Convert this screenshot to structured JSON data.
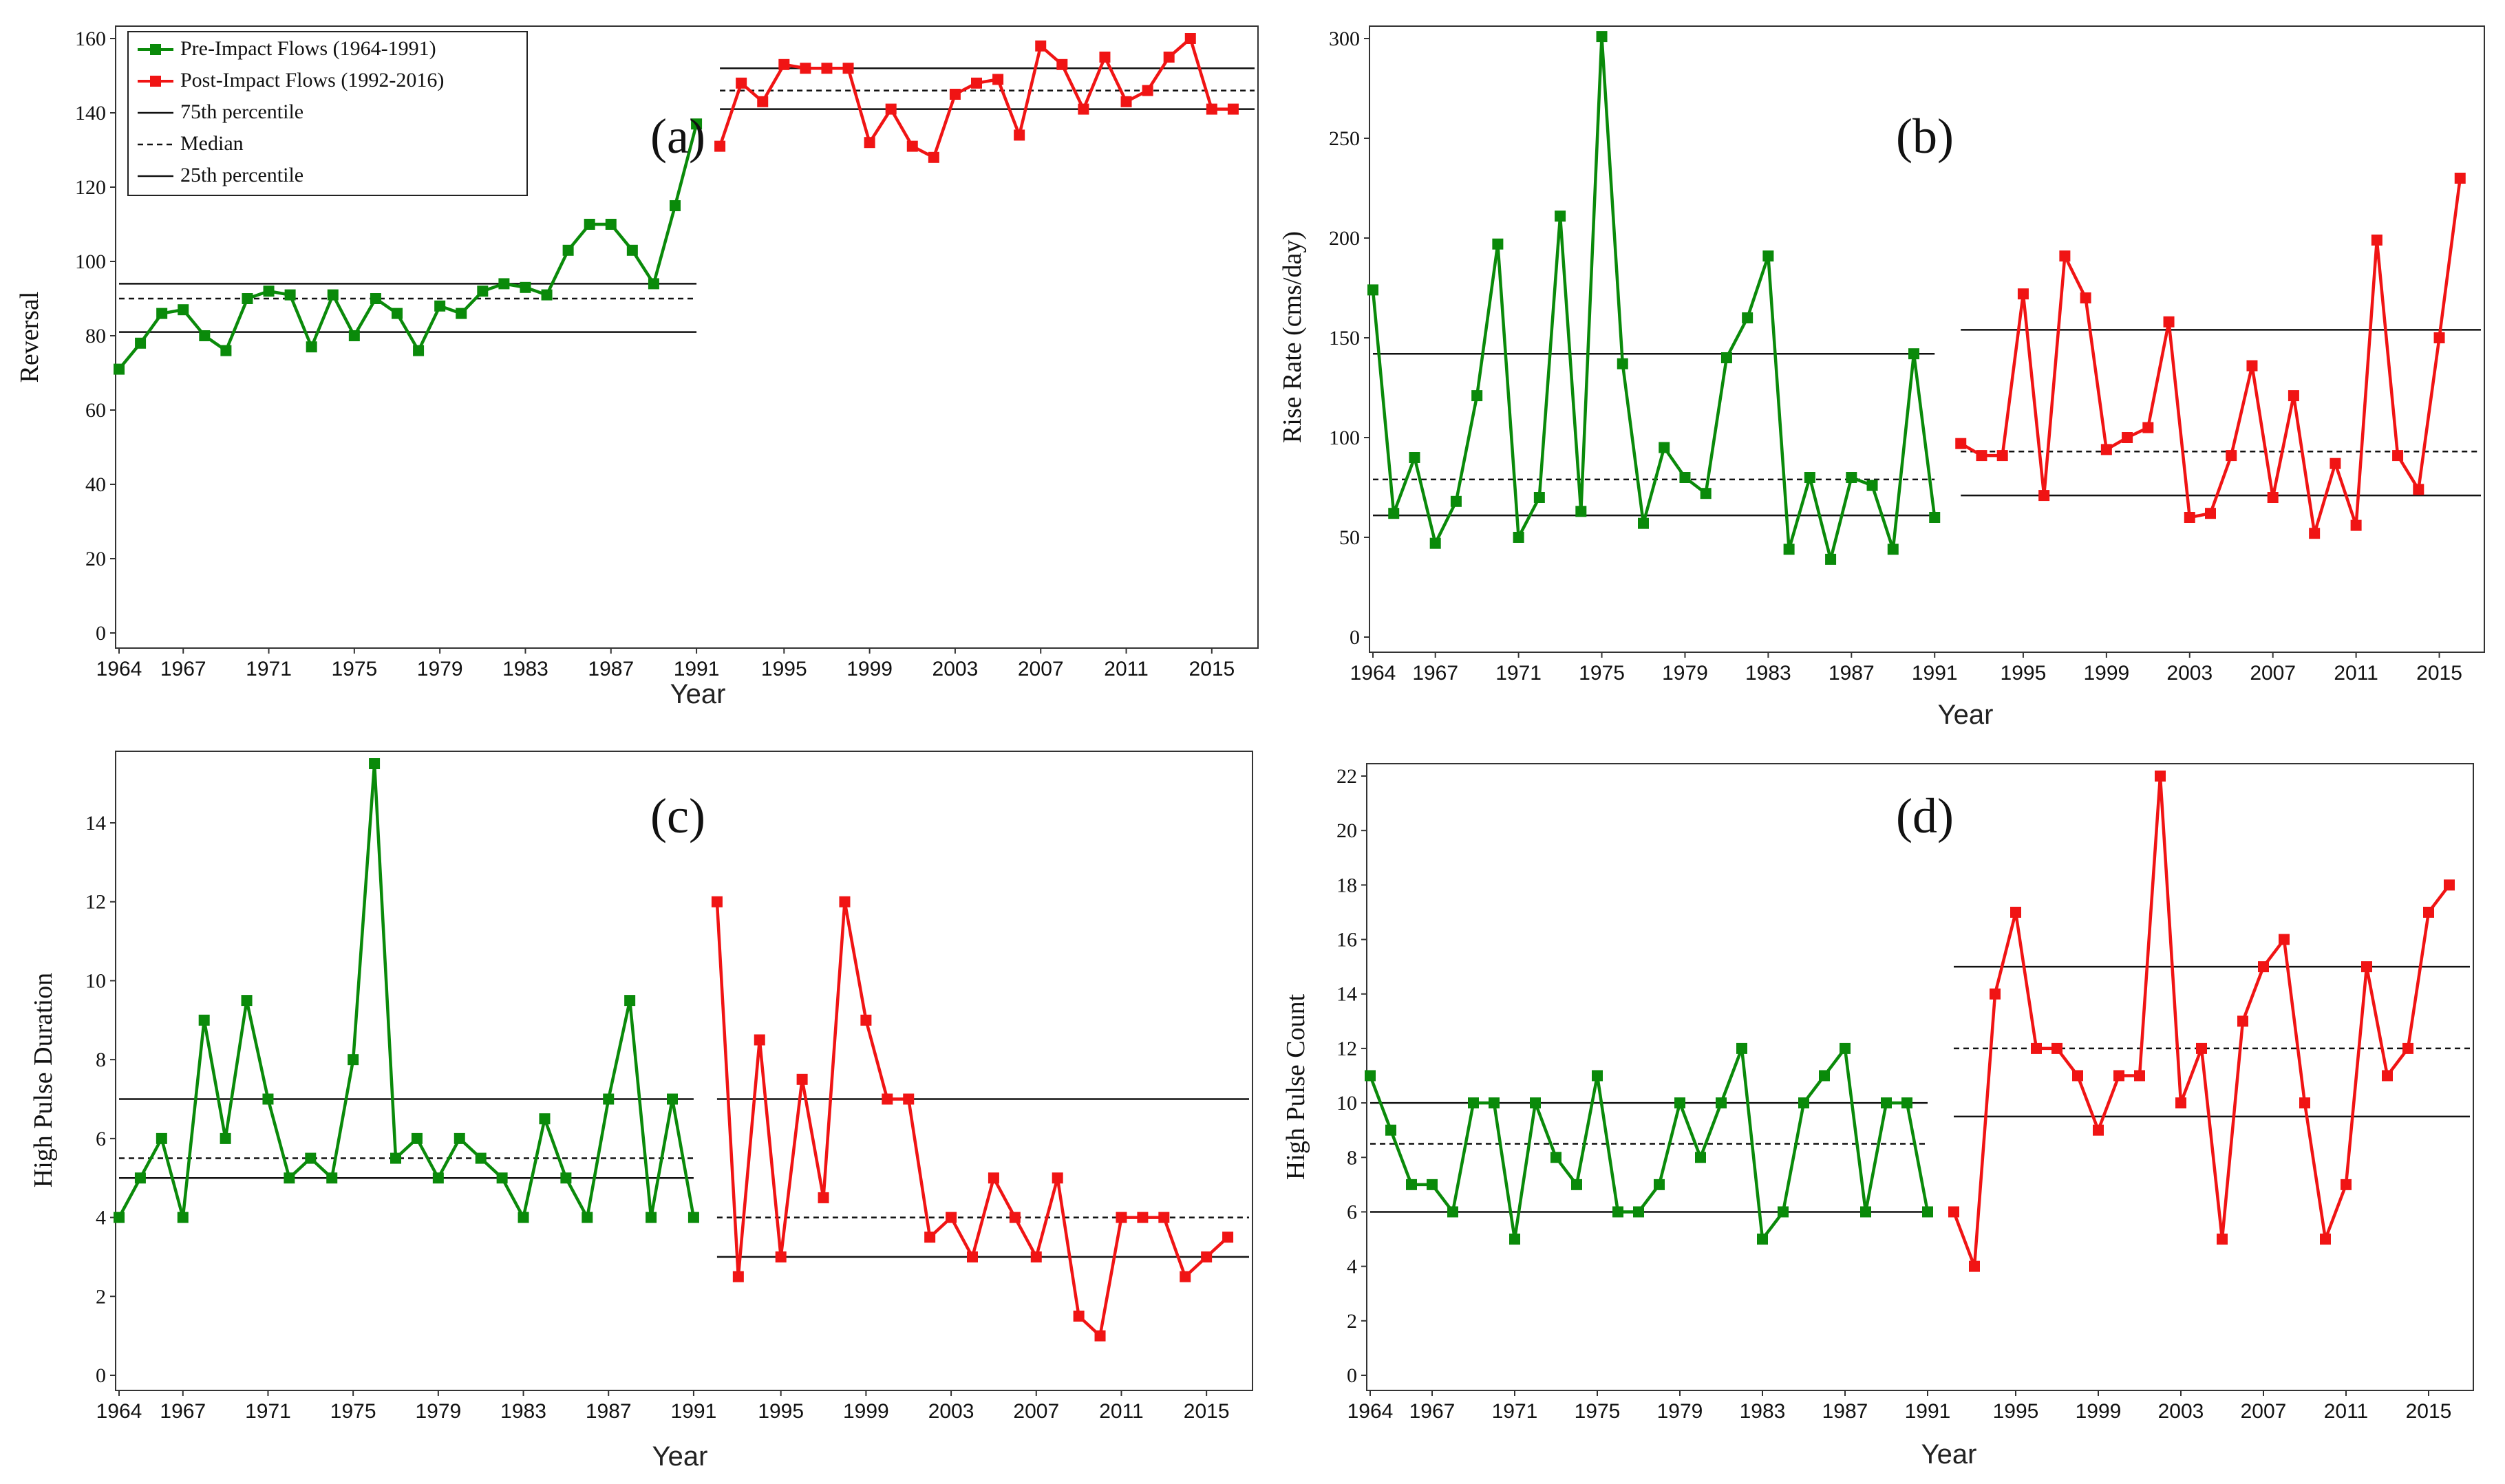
{
  "colors": {
    "pre": "#0a8a0a",
    "post": "#f01414",
    "ref": "#111111"
  },
  "legend": {
    "items": [
      {
        "label": "Pre-Impact Flows (1964-1991)",
        "kind": "pre"
      },
      {
        "label": "Post-Impact Flows (1992-2016)",
        "kind": "post"
      },
      {
        "label": "75th percentile",
        "kind": "solid"
      },
      {
        "label": "Median",
        "kind": "dashed"
      },
      {
        "label": "25th percentile",
        "kind": "solid"
      }
    ]
  },
  "chart_data": [
    {
      "type": "line",
      "panel": "(a)",
      "ylabel": "Reversal",
      "xlabel": "Year",
      "ylim": [
        0,
        160
      ],
      "yticks": [
        0,
        20,
        40,
        60,
        80,
        100,
        120,
        140,
        160
      ],
      "xlim": [
        1964,
        2016
      ],
      "xticks": [
        "1964",
        "1967",
        "1971",
        "1975",
        "1979",
        "1983",
        "1987",
        "1991",
        "1995",
        "1999",
        "2003",
        "2007",
        "2011",
        "2015"
      ],
      "series": [
        {
          "name": "Pre-Impact Flows (1964-1991)",
          "x_start": 1964,
          "values": [
            71,
            78,
            86,
            87,
            80,
            76,
            90,
            92,
            91,
            77,
            91,
            80,
            90,
            86,
            76,
            88,
            86,
            92,
            94,
            93,
            91,
            103,
            110,
            110,
            103,
            94,
            115,
            137
          ]
        },
        {
          "name": "Post-Impact Flows (1992-2016)",
          "x_start": 1992,
          "values": [
            131,
            148,
            143,
            153,
            152,
            152,
            152,
            132,
            141,
            131,
            128,
            145,
            148,
            149,
            134,
            158,
            153,
            141,
            155,
            143,
            146,
            155,
            160,
            141,
            141
          ]
        }
      ],
      "reference_lines": {
        "pre": {
          "p75": 94,
          "median": 90,
          "p25": 81
        },
        "post": {
          "p75": 152,
          "median": 146,
          "p25": 141
        }
      }
    },
    {
      "type": "line",
      "panel": "(b)",
      "ylabel": "Rise Rate (cms/day)",
      "xlabel": "Year",
      "ylim": [
        0,
        300
      ],
      "yticks": [
        0,
        50,
        100,
        150,
        200,
        250,
        300
      ],
      "xlim": [
        1964,
        2016
      ],
      "xticks": [
        "1964",
        "1967",
        "1971",
        "1975",
        "1979",
        "1983",
        "1987",
        "1991",
        "1995",
        "1999",
        "2003",
        "2007",
        "2011",
        "2015"
      ],
      "series": [
        {
          "name": "Pre-Impact Flows (1964-1991)",
          "x_start": 1964,
          "values": [
            174,
            62,
            90,
            47,
            68,
            121,
            197,
            50,
            70,
            211,
            63,
            301,
            137,
            57,
            95,
            80,
            72,
            140,
            160,
            191,
            44,
            80,
            39,
            80,
            76,
            44,
            142,
            60
          ]
        },
        {
          "name": "Post-Impact Flows (1992-2016)",
          "x_start": 1992,
          "values": [
            97,
            91,
            91,
            172,
            71,
            191,
            170,
            94,
            100,
            105,
            158,
            60,
            62,
            91,
            136,
            70,
            121,
            52,
            87,
            56,
            199,
            91,
            74,
            150,
            230
          ]
        }
      ],
      "reference_lines": {
        "pre": {
          "p75": 142,
          "median": 79,
          "p25": 61
        },
        "post": {
          "p75": 154,
          "median": 93,
          "p25": 71
        }
      }
    },
    {
      "type": "line",
      "panel": "(c)",
      "ylabel": "High Pulse Duration",
      "xlabel": "Year",
      "ylim": [
        0,
        15.5
      ],
      "yticks": [
        0,
        2,
        4,
        6,
        8,
        10,
        12,
        14
      ],
      "xlim": [
        1964,
        2016
      ],
      "xticks": [
        "1964",
        "1967",
        "1971",
        "1975",
        "1979",
        "1983",
        "1987",
        "1991",
        "1995",
        "1999",
        "2003",
        "2007",
        "2011",
        "2015"
      ],
      "series": [
        {
          "name": "Pre-Impact Flows (1964-1991)",
          "x_start": 1964,
          "values": [
            4,
            5,
            6,
            4,
            9,
            6,
            9.5,
            7,
            5,
            5.5,
            5,
            8,
            15.5,
            5.5,
            6,
            5,
            6,
            5.5,
            5,
            4,
            6.5,
            5,
            4,
            7,
            9.5,
            4,
            7,
            4
          ]
        },
        {
          "name": "Post-Impact Flows (1992-2016)",
          "x_start": 1992,
          "values": [
            12,
            2.5,
            8.5,
            3,
            7.5,
            4.5,
            12,
            9,
            7,
            7,
            3.5,
            4,
            3,
            5,
            4,
            3,
            5,
            1.5,
            1,
            4,
            4,
            4,
            2.5,
            3,
            3.5
          ]
        }
      ],
      "reference_lines": {
        "pre": {
          "p75": 7,
          "median": 5.5,
          "p25": 5
        },
        "post": {
          "p75": 7,
          "median": 4,
          "p25": 3
        }
      }
    },
    {
      "type": "line",
      "panel": "(d)",
      "ylabel": "High Pulse Count",
      "xlabel": "Year",
      "ylim": [
        0,
        22
      ],
      "yticks": [
        0,
        2,
        4,
        6,
        8,
        10,
        12,
        14,
        16,
        18,
        20,
        22
      ],
      "xlim": [
        1964,
        2016
      ],
      "xticks": [
        "1964",
        "1967",
        "1971",
        "1975",
        "1979",
        "1983",
        "1987",
        "1991",
        "1995",
        "1999",
        "2003",
        "2007",
        "2011",
        "2015"
      ],
      "series": [
        {
          "name": "Pre-Impact Flows (1964-1991)",
          "x_start": 1964,
          "values": [
            11,
            9,
            7,
            7,
            6,
            10,
            10,
            5,
            10,
            8,
            7,
            11,
            6,
            6,
            7,
            10,
            8,
            10,
            12,
            5,
            6,
            10,
            11,
            12,
            6,
            10,
            10,
            6
          ]
        },
        {
          "name": "Post-Impact Flows (1992-2016)",
          "x_start": 1992,
          "values": [
            6,
            4,
            14,
            17,
            12,
            12,
            11,
            9,
            11,
            11,
            22,
            10,
            12,
            5,
            13,
            15,
            16,
            10,
            5,
            7,
            15,
            11,
            12,
            17,
            18
          ]
        }
      ],
      "reference_lines": {
        "pre": {
          "p75": 10,
          "median": 8.5,
          "p25": 6
        },
        "post": {
          "p75": 15,
          "median": 12,
          "p25": 9.5
        }
      }
    }
  ]
}
